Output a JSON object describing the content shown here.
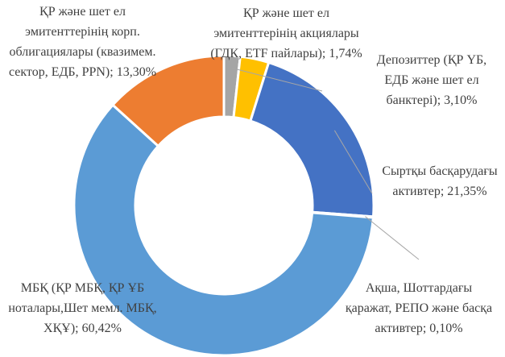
{
  "chart_data": {
    "type": "donut",
    "categories": [
      "ҚР және шет ел эмитенттерінің акциялары (ГДК, ETF пайлары);",
      "Депозиттер (ҚР ҮБ, ЕДБ және шет ел банктері);",
      "Сыртқы басқарудағы активтер;",
      "Ақша, Шоттардағы қаражат, РЕПО және басқа активтер;",
      "МБҚ (ҚР МБҚ, ҚР ҰБ ноталары,Шет мемл. МБҚ, ХҚҰ);",
      "ҚР және шет ел эмитенттерінің корп. облигациялары (квазимем. сектор, ЕДБ, PPN);"
    ],
    "values": [
      1.74,
      3.1,
      21.35,
      0.1,
      60.42,
      13.3
    ],
    "value_labels": [
      "1,74%",
      "3,10%",
      "21,35%",
      "0,10%",
      "60,42%",
      "13,30%"
    ],
    "colors": [
      "#a5a5a5",
      "#ffc000",
      "#4472c4",
      "#70ad47",
      "#5b9bd5",
      "#ed7d31"
    ]
  }
}
